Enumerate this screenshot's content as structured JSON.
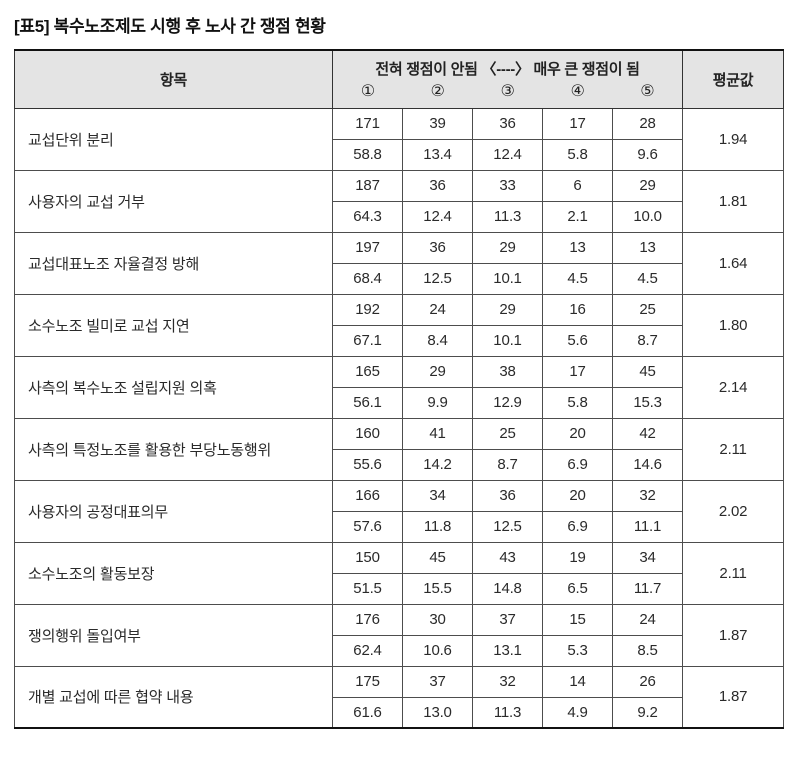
{
  "title": "[표5] 복수노조제도 시행 후 노사 간 쟁점 현황",
  "table": {
    "header": {
      "item": "항목",
      "scale": "전혀 쟁점이 안됨 〈----〉 매우 큰 쟁점이 됨",
      "scale_points": [
        "①",
        "②",
        "③",
        "④",
        "⑤"
      ],
      "mean": "평균값"
    },
    "rows": [
      {
        "label": "교섭단위 분리",
        "counts": [
          "171",
          "39",
          "36",
          "17",
          "28"
        ],
        "percents": [
          "58.8",
          "13.4",
          "12.4",
          "5.8",
          "9.6"
        ],
        "mean": "1.94"
      },
      {
        "label": "사용자의 교섭 거부",
        "counts": [
          "187",
          "36",
          "33",
          "6",
          "29"
        ],
        "percents": [
          "64.3",
          "12.4",
          "11.3",
          "2.1",
          "10.0"
        ],
        "mean": "1.81"
      },
      {
        "label": "교섭대표노조 자율결정 방해",
        "counts": [
          "197",
          "36",
          "29",
          "13",
          "13"
        ],
        "percents": [
          "68.4",
          "12.5",
          "10.1",
          "4.5",
          "4.5"
        ],
        "mean": "1.64"
      },
      {
        "label": "소수노조 빌미로 교섭 지연",
        "counts": [
          "192",
          "24",
          "29",
          "16",
          "25"
        ],
        "percents": [
          "67.1",
          "8.4",
          "10.1",
          "5.6",
          "8.7"
        ],
        "mean": "1.80"
      },
      {
        "label": "사측의 복수노조 설립지원 의혹",
        "counts": [
          "165",
          "29",
          "38",
          "17",
          "45"
        ],
        "percents": [
          "56.1",
          "9.9",
          "12.9",
          "5.8",
          "15.3"
        ],
        "mean": "2.14"
      },
      {
        "label": "사측의 특정노조를 활용한 부당노동행위",
        "counts": [
          "160",
          "41",
          "25",
          "20",
          "42"
        ],
        "percents": [
          "55.6",
          "14.2",
          "8.7",
          "6.9",
          "14.6"
        ],
        "mean": "2.11"
      },
      {
        "label": "사용자의 공정대표의무",
        "counts": [
          "166",
          "34",
          "36",
          "20",
          "32"
        ],
        "percents": [
          "57.6",
          "11.8",
          "12.5",
          "6.9",
          "11.1"
        ],
        "mean": "2.02"
      },
      {
        "label": "소수노조의 활동보장",
        "counts": [
          "150",
          "45",
          "43",
          "19",
          "34"
        ],
        "percents": [
          "51.5",
          "15.5",
          "14.8",
          "6.5",
          "11.7"
        ],
        "mean": "2.11"
      },
      {
        "label": "쟁의행위 돌입여부",
        "counts": [
          "176",
          "30",
          "37",
          "15",
          "24"
        ],
        "percents": [
          "62.4",
          "10.6",
          "13.1",
          "5.3",
          "8.5"
        ],
        "mean": "1.87"
      },
      {
        "label": "개별 교섭에 따른 협약 내용",
        "counts": [
          "175",
          "37",
          "32",
          "14",
          "26"
        ],
        "percents": [
          "61.6",
          "13.0",
          "11.3",
          "4.9",
          "9.2"
        ],
        "mean": "1.87"
      }
    ]
  }
}
